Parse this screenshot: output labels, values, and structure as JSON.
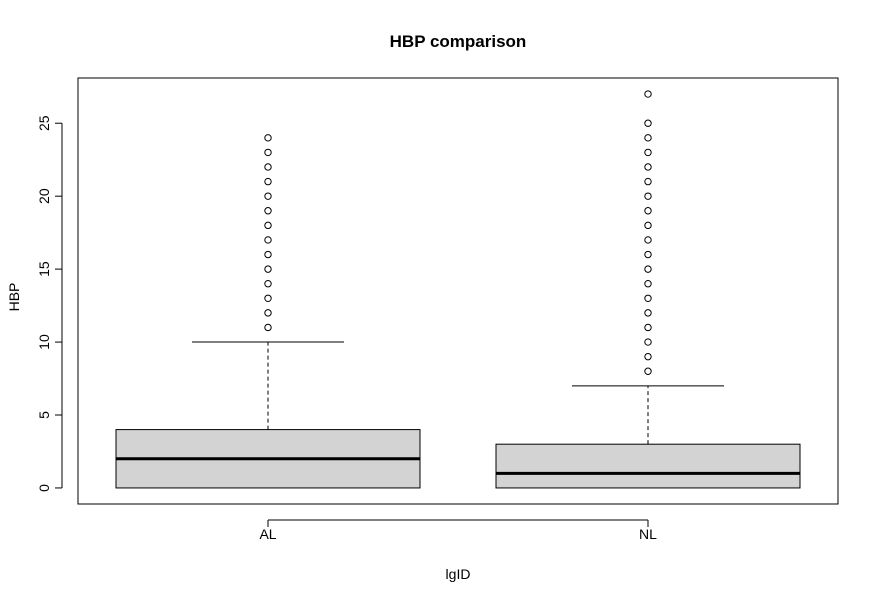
{
  "chart_data": {
    "type": "boxplot",
    "title": "HBP comparison",
    "xlabel": "lgID",
    "ylabel": "HBP",
    "categories": [
      "AL",
      "NL"
    ],
    "ylim": [
      -1.1,
      28.1
    ],
    "yticks": [
      0,
      5,
      10,
      15,
      20,
      25
    ],
    "boxes": [
      {
        "category": "AL",
        "min": 0,
        "q1": 0,
        "median": 2,
        "q3": 4,
        "max": 10,
        "outliers": [
          11,
          12,
          13,
          14,
          15,
          16,
          17,
          18,
          19,
          20,
          21,
          22,
          23,
          24
        ]
      },
      {
        "category": "NL",
        "min": 0,
        "q1": 0,
        "median": 1,
        "q3": 3,
        "max": 7,
        "outliers": [
          8,
          9,
          10,
          11,
          12,
          13,
          14,
          15,
          16,
          17,
          18,
          19,
          20,
          21,
          22,
          23,
          24,
          25,
          27
        ]
      }
    ],
    "box_fill": "#d3d3d3",
    "line_color": "#000000",
    "grid": false,
    "legend": false
  }
}
